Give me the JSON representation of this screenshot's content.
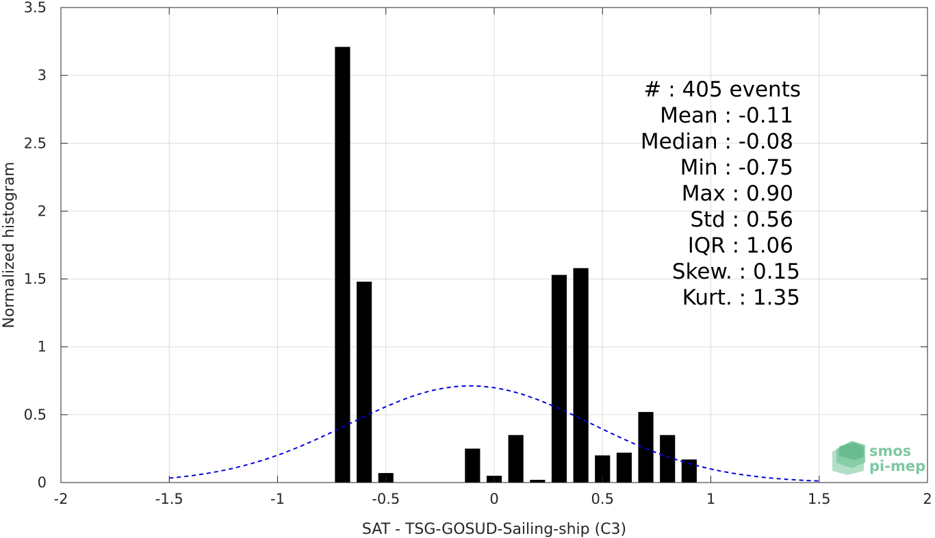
{
  "chart_data": {
    "type": "bar",
    "xlabel": "SAT - TSG-GOSUD-Sailing-ship (C3)",
    "ylabel": "Normalized histogram",
    "xlim": [
      -2,
      2
    ],
    "ylim": [
      0,
      3.5
    ],
    "xticks": [
      -2,
      -1.5,
      -1,
      -0.5,
      0,
      0.5,
      1,
      1.5,
      2
    ],
    "xtick_labels": [
      "-2",
      "-1.5",
      "-1",
      "-0.5",
      "0",
      "0.5",
      "1",
      "1.5",
      "2"
    ],
    "yticks": [
      0,
      0.5,
      1,
      1.5,
      2,
      2.5,
      3,
      3.5
    ],
    "ytick_labels": [
      "0",
      "0.5",
      "1",
      "1.5",
      "2",
      "2.5",
      "3",
      "3.5"
    ],
    "grid": true,
    "bar_width": 0.07,
    "bar_color": "#000000",
    "bars": [
      {
        "x": -0.7,
        "y": 3.21
      },
      {
        "x": -0.6,
        "y": 1.48
      },
      {
        "x": -0.5,
        "y": 0.07
      },
      {
        "x": -0.1,
        "y": 0.25
      },
      {
        "x": 0.0,
        "y": 0.05
      },
      {
        "x": 0.1,
        "y": 0.35
      },
      {
        "x": 0.2,
        "y": 0.02
      },
      {
        "x": 0.3,
        "y": 1.53
      },
      {
        "x": 0.4,
        "y": 1.58
      },
      {
        "x": 0.5,
        "y": 0.2
      },
      {
        "x": 0.6,
        "y": 0.22
      },
      {
        "x": 0.7,
        "y": 0.52
      },
      {
        "x": 0.8,
        "y": 0.35
      },
      {
        "x": 0.9,
        "y": 0.17
      }
    ],
    "fit_curve": {
      "kind": "normal",
      "mean": -0.11,
      "std": 0.56,
      "x_range": [
        -1.5,
        1.5
      ],
      "color": "#0000dd",
      "style": "dashed"
    },
    "annotations": [
      "#  : 405 events",
      "Mean : -0.11",
      "Median : -0.08",
      "Min : -0.75",
      "Max : 0.90",
      "Std : 0.56",
      "IQR : 1.06",
      "Skew. : 0.15",
      "Kurt. : 1.35"
    ]
  },
  "logo": {
    "line1": "smos",
    "line2": "pi-mep"
  }
}
